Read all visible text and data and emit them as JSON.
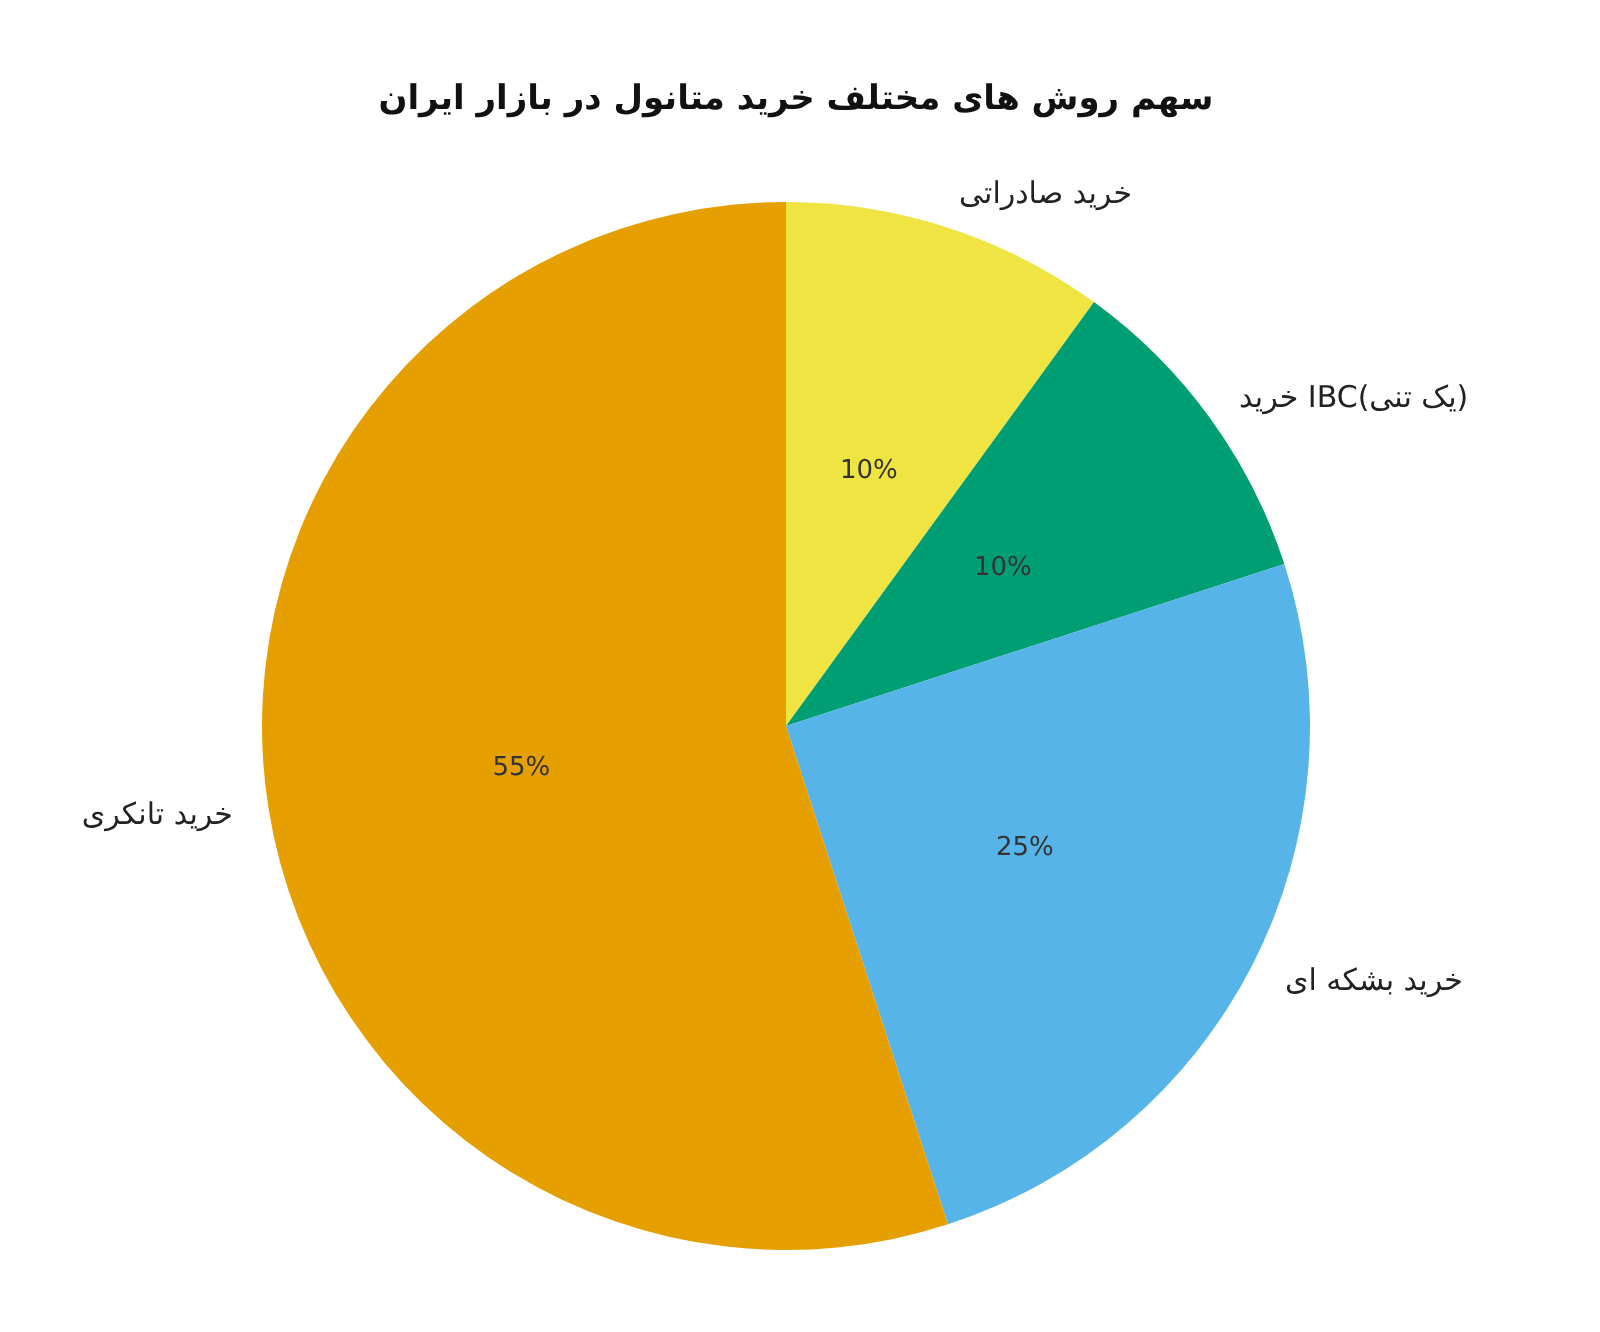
{
  "chart_data": {
    "type": "pie",
    "title": "سهم روش های مختلف خرید متانول در بازار ایران",
    "categories": [
      "خرید صادراتی",
      "خرید IBC(یک تنی)",
      "خرید بشکه ای",
      "خرید تانکری"
    ],
    "values": [
      10,
      10,
      25,
      55
    ],
    "colors": [
      "#f0e442",
      "#009e73",
      "#56b4e9",
      "#e69f00"
    ],
    "value_labels": [
      "10%",
      "10%",
      "25%",
      "55%"
    ],
    "legend": false
  }
}
